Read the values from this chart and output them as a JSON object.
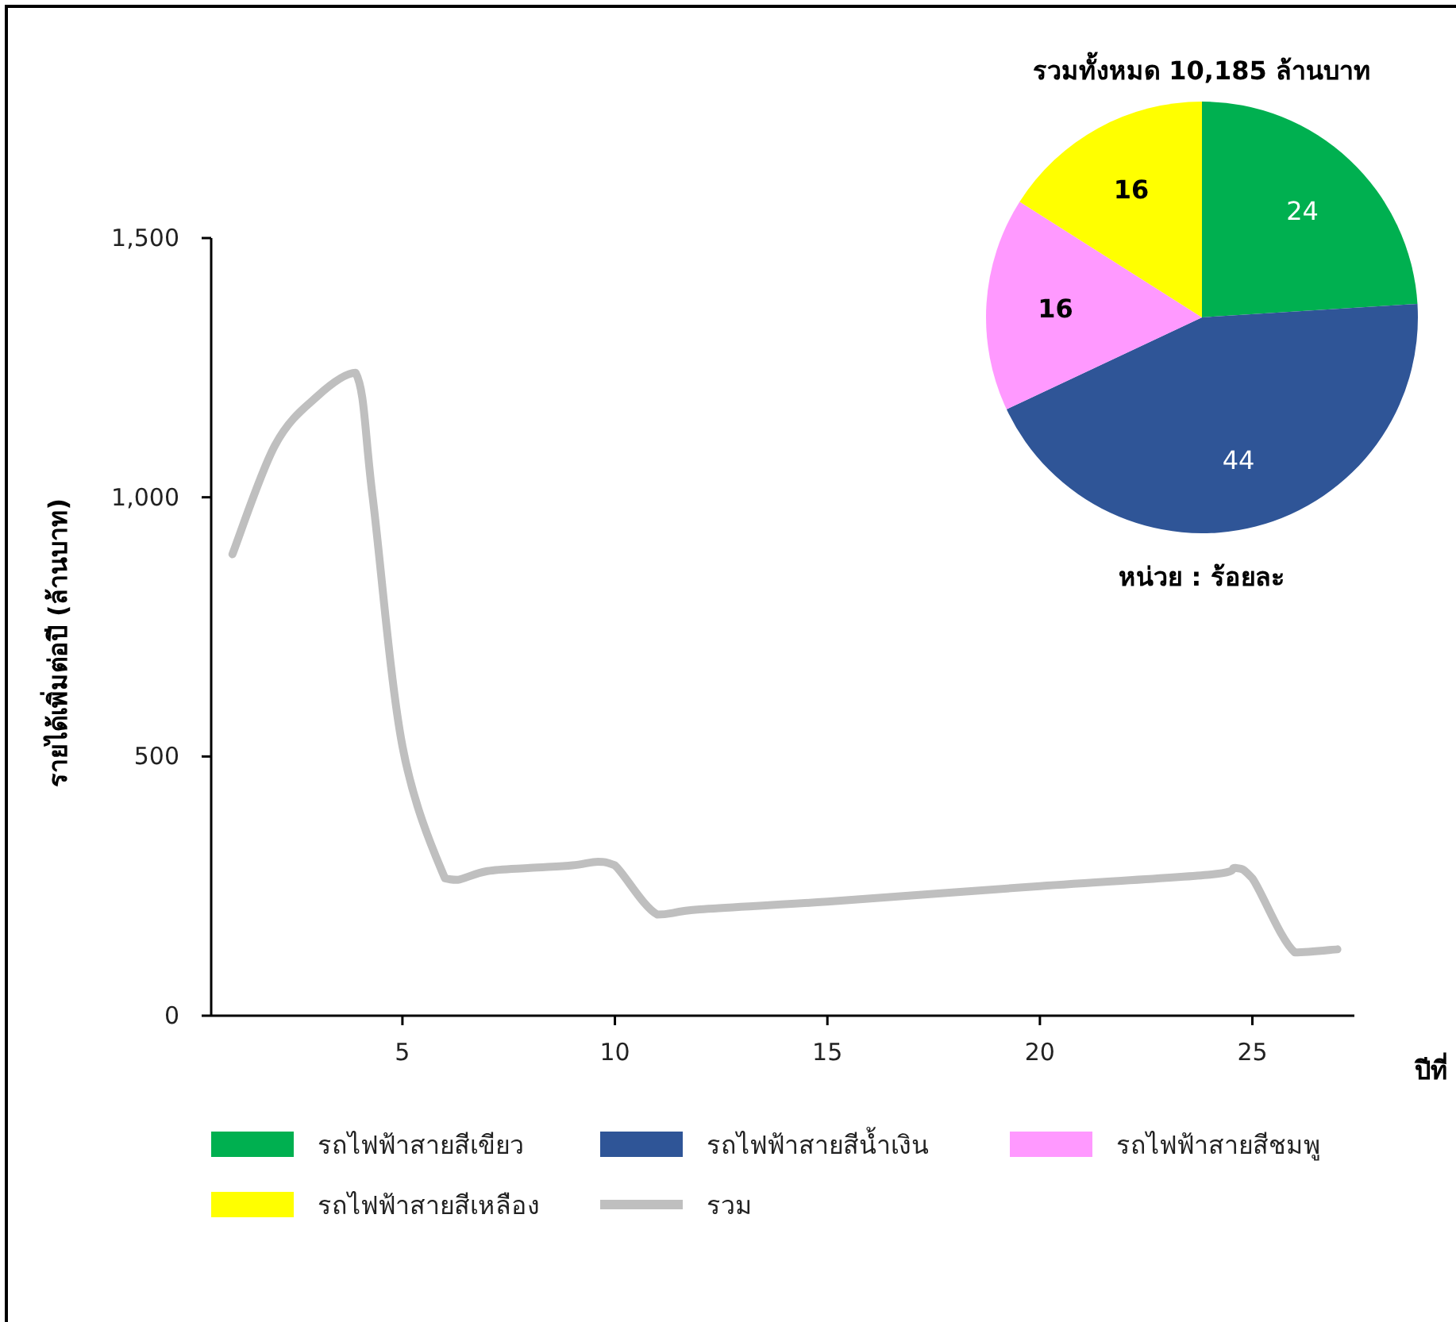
{
  "chart_data": [
    {
      "type": "line",
      "xlabel": "ปีที่",
      "ylabel": "รายได้เพิ่มต่อปี (ล้านบาท)",
      "x": [
        1,
        2,
        3,
        3.9,
        4.3,
        5,
        6,
        6.3,
        7,
        8,
        9,
        9.6,
        10,
        11,
        12,
        15,
        20,
        24,
        24.6,
        25,
        26,
        27
      ],
      "series": [
        {
          "name": "รวม",
          "color": "#bfbfbf",
          "values": [
            890,
            1100,
            1195,
            1240,
            1000,
            520,
            265,
            262,
            279,
            285,
            290,
            297,
            290,
            195,
            205,
            220,
            250,
            272,
            285,
            265,
            122,
            128
          ]
        }
      ],
      "xlim": [
        0.5,
        27.4
      ],
      "xticks": [
        5,
        10,
        15,
        20,
        25
      ],
      "ylim": [
        0,
        1500
      ],
      "yticks": [
        0,
        500,
        {
          "value": 1000,
          "label": "1,000"
        },
        {
          "value": 1500,
          "label": "1,500"
        }
      ],
      "legend": "bottom",
      "marker": "none",
      "line_style": "solid",
      "grid": false
    },
    {
      "type": "pie",
      "title": "รวมทั้งหมด 10,185 ล้านบาท",
      "categories": [
        "รถไฟฟ้าสายสีเขียว",
        "รถไฟฟ้าสายสีน้ำเงิน",
        "รถไฟฟ้าสายสีชมพู",
        "รถไฟฟ้าสายสีเหลือง"
      ],
      "values": [
        24,
        44,
        16,
        16
      ],
      "colors": [
        "#00b050",
        "#2f5597",
        "#ff99ff",
        "#ffff00"
      ],
      "data_labels": true,
      "legend": "bottom",
      "annotations": [
        "หน่วย : ร้อยละ"
      ]
    }
  ]
}
